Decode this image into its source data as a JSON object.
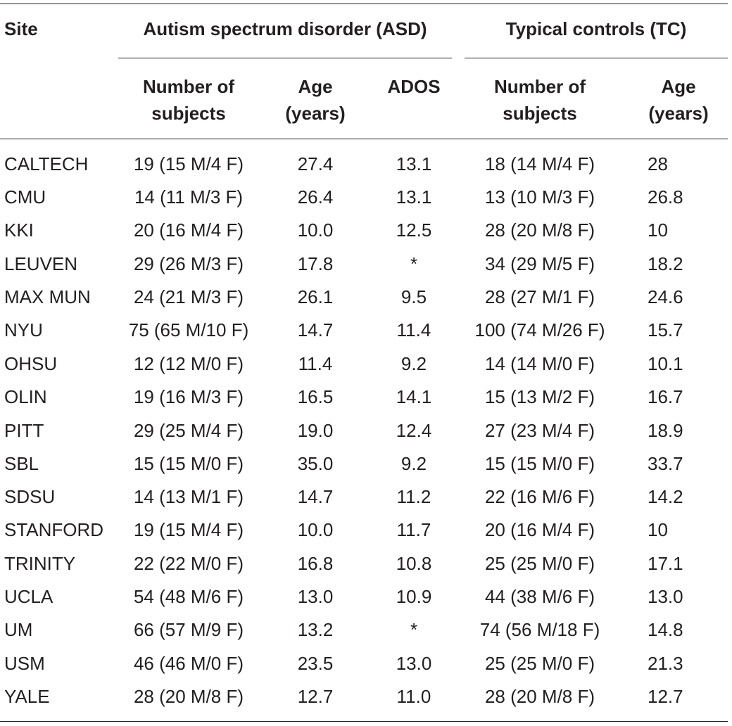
{
  "headers": {
    "site": "Site",
    "asd_group": "Autism spectrum disorder (ASD)",
    "tc_group": "Typical controls (TC)",
    "asd_n_line1": "Number of",
    "asd_n_line2": "subjects",
    "asd_age_line1": "Age",
    "asd_age_line2": "(years)",
    "asd_ados": "ADOS",
    "tc_n_line1": "Number of",
    "tc_n_line2": "subjects",
    "tc_age_line1": "Age",
    "tc_age_line2": "(years)"
  },
  "rows": [
    {
      "site": "CALTECH",
      "asd_n": "19 (15 M/4 F)",
      "asd_age": "27.4",
      "ados": "13.1",
      "tc_n": "18 (14 M/4 F)",
      "tc_age": "28"
    },
    {
      "site": "CMU",
      "asd_n": "14 (11 M/3 F)",
      "asd_age": "26.4",
      "ados": "13.1",
      "tc_n": "13 (10 M/3 F)",
      "tc_age": "26.8"
    },
    {
      "site": "KKI",
      "asd_n": "20 (16 M/4 F)",
      "asd_age": "10.0",
      "ados": "12.5",
      "tc_n": "28 (20 M/8 F)",
      "tc_age": "10"
    },
    {
      "site": "LEUVEN",
      "asd_n": "29 (26 M/3 F)",
      "asd_age": "17.8",
      "ados": "*",
      "tc_n": "34 (29 M/5 F)",
      "tc_age": "18.2"
    },
    {
      "site": "MAX MUN",
      "asd_n": "24 (21 M/3 F)",
      "asd_age": "26.1",
      "ados": "9.5",
      "tc_n": "28 (27 M/1 F)",
      "tc_age": "24.6"
    },
    {
      "site": "NYU",
      "asd_n": "75 (65 M/10 F)",
      "asd_age": "14.7",
      "ados": "11.4",
      "tc_n": "100 (74 M/26 F)",
      "tc_age": "15.7"
    },
    {
      "site": "OHSU",
      "asd_n": "12 (12 M/0 F)",
      "asd_age": "11.4",
      "ados": "9.2",
      "tc_n": "14 (14 M/0 F)",
      "tc_age": "10.1"
    },
    {
      "site": "OLIN",
      "asd_n": "19 (16 M/3 F)",
      "asd_age": "16.5",
      "ados": "14.1",
      "tc_n": "15 (13 M/2 F)",
      "tc_age": "16.7"
    },
    {
      "site": "PITT",
      "asd_n": "29 (25 M/4 F)",
      "asd_age": "19.0",
      "ados": "12.4",
      "tc_n": "27 (23 M/4 F)",
      "tc_age": "18.9"
    },
    {
      "site": "SBL",
      "asd_n": "15 (15 M/0 F)",
      "asd_age": "35.0",
      "ados": "9.2",
      "tc_n": "15 (15 M/0 F)",
      "tc_age": "33.7"
    },
    {
      "site": "SDSU",
      "asd_n": "14 (13 M/1 F)",
      "asd_age": "14.7",
      "ados": "11.2",
      "tc_n": "22 (16 M/6 F)",
      "tc_age": "14.2"
    },
    {
      "site": "STANFORD",
      "asd_n": "19 (15 M/4 F)",
      "asd_age": "10.0",
      "ados": "11.7",
      "tc_n": "20 (16 M/4 F)",
      "tc_age": "10"
    },
    {
      "site": "TRINITY",
      "asd_n": "22 (22 M/0 F)",
      "asd_age": "16.8",
      "ados": "10.8",
      "tc_n": "25 (25 M/0 F)",
      "tc_age": "17.1"
    },
    {
      "site": "UCLA",
      "asd_n": "54 (48 M/6 F)",
      "asd_age": "13.0",
      "ados": "10.9",
      "tc_n": "44 (38 M/6 F)",
      "tc_age": "13.0"
    },
    {
      "site": "UM",
      "asd_n": "66 (57 M/9 F)",
      "asd_age": "13.2",
      "ados": "*",
      "tc_n": "74 (56 M/18 F)",
      "tc_age": "14.8"
    },
    {
      "site": "USM",
      "asd_n": "46 (46 M/0 F)",
      "asd_age": "23.5",
      "ados": "13.0",
      "tc_n": "25 (25 M/0 F)",
      "tc_age": "21.3"
    },
    {
      "site": "YALE",
      "asd_n": "28 (20 M/8 F)",
      "asd_age": "12.7",
      "ados": "11.0",
      "tc_n": "28 (20 M/8 F)",
      "tc_age": "12.7"
    }
  ]
}
